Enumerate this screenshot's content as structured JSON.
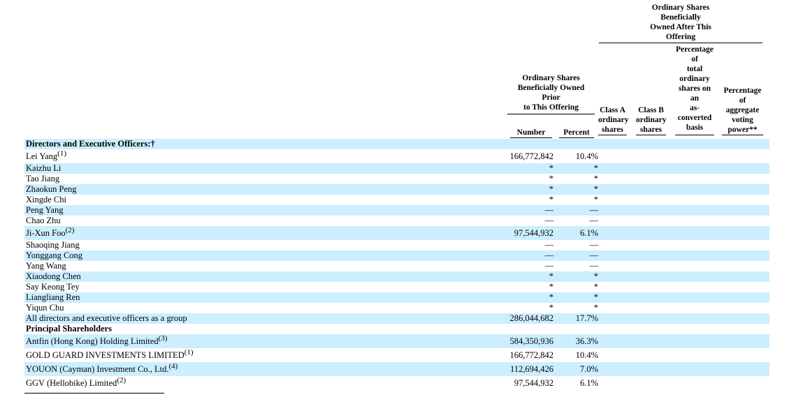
{
  "header": {
    "after_offering": "Ordinary Shares\nBeneficially\nOwned After This\nOffering",
    "prior_offering": "Ordinary Shares\nBeneficially Owned\nPrior\nto This Offering",
    "number": "Number",
    "percent": "Percent",
    "class_a": "Class A\nordinary\nshares",
    "class_b": "Class B\nordinary\nshares",
    "pct_as_converted": "Percentage\nof\ntotal\nordinary\nshares on\nan\nas-\nconverted\nbasis",
    "pct_voting_power": "Percentage\nof\naggregate\nvoting\npower**"
  },
  "colors": {
    "row_highlight": "#cceeff",
    "text": "#000000",
    "background": "#ffffff"
  },
  "rows": [
    {
      "name": "Directors and Executive Officers:†",
      "sup": "",
      "number": "",
      "percent": "",
      "highlight": true,
      "bold": true
    },
    {
      "name": "Lei Yang",
      "sup": "(1)",
      "number": "166,772,842",
      "percent": "10.4%",
      "highlight": false,
      "bold": false
    },
    {
      "name": "Kaizhu Li",
      "sup": "",
      "number": "*",
      "percent": "*",
      "highlight": true,
      "bold": false
    },
    {
      "name": "Tao Jiang",
      "sup": "",
      "number": "*",
      "percent": "*",
      "highlight": false,
      "bold": false
    },
    {
      "name": "Zhaokun Peng",
      "sup": "",
      "number": "*",
      "percent": "*",
      "highlight": true,
      "bold": false
    },
    {
      "name": "Xingde Chi",
      "sup": "",
      "number": "*",
      "percent": "*",
      "highlight": false,
      "bold": false
    },
    {
      "name": "Peng Yang",
      "sup": "",
      "number": "—",
      "percent": "—",
      "highlight": true,
      "bold": false
    },
    {
      "name": "Chao Zhu",
      "sup": "",
      "number": "—",
      "percent": "—",
      "highlight": false,
      "bold": false
    },
    {
      "name": "Ji-Xun Foo",
      "sup": "(2)",
      "number": "97,544,932",
      "percent": "6.1%",
      "highlight": true,
      "bold": false
    },
    {
      "name": "Shaoqing Jiang",
      "sup": "",
      "number": "—",
      "percent": "—",
      "highlight": false,
      "bold": false
    },
    {
      "name": "Yonggang Cong",
      "sup": "",
      "number": "—",
      "percent": "—",
      "highlight": true,
      "bold": false
    },
    {
      "name": "Yang Wang",
      "sup": "",
      "number": "—",
      "percent": "—",
      "highlight": false,
      "bold": false
    },
    {
      "name": "Xiaodong Chen",
      "sup": "",
      "number": "*",
      "percent": "*",
      "highlight": true,
      "bold": false
    },
    {
      "name": "Say Keong Tey",
      "sup": "",
      "number": "*",
      "percent": "*",
      "highlight": false,
      "bold": false
    },
    {
      "name": "Liangliang Ren",
      "sup": "",
      "number": "*",
      "percent": "*",
      "highlight": true,
      "bold": false
    },
    {
      "name": "Yiqun Chu",
      "sup": "",
      "number": "*",
      "percent": "*",
      "highlight": false,
      "bold": false
    },
    {
      "name": "All directors and executive officers as a group",
      "sup": "",
      "number": "286,044,682",
      "percent": "17.7%",
      "highlight": true,
      "bold": false
    },
    {
      "name": "Principal Shareholders",
      "sup": "",
      "number": "",
      "percent": "",
      "highlight": false,
      "bold": true
    },
    {
      "name": "Antfin (Hong Kong) Holding Limited",
      "sup": "(3)",
      "number": "584,350,936",
      "percent": "36.3%",
      "highlight": true,
      "bold": false
    },
    {
      "name": "GOLD GUARD INVESTMENTS LIMITED",
      "sup": "(1)",
      "number": "166,772,842",
      "percent": "10.4%",
      "highlight": false,
      "bold": false
    },
    {
      "name": "YOUON (Cayman) Investment Co., Ltd.",
      "sup": "(4)",
      "number": "112,694,426",
      "percent": "7.0%",
      "highlight": true,
      "bold": false
    },
    {
      "name": "GGV (Hellobike) Limited",
      "sup": "(2)",
      "number": "97,544,932",
      "percent": "6.1%",
      "highlight": false,
      "bold": false
    }
  ]
}
